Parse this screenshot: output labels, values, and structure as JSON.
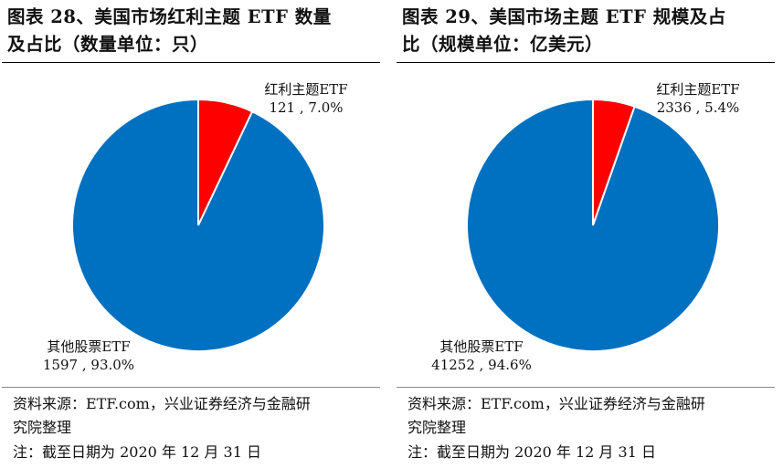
{
  "colors": {
    "highlight": "#fe0000",
    "other": "#0070c0"
  },
  "chart_data": [
    {
      "type": "pie",
      "title_line1": "图表 28、美国市场红利主题 ETF 数量",
      "title_line2": "及占比（数量单位：只）",
      "slices": [
        {
          "name": "红利主题ETF",
          "value": 121,
          "percent": "7.0%",
          "label_value": "121 , 7.0%",
          "color": "#fe0000"
        },
        {
          "name": "其他股票ETF",
          "value": 1597,
          "percent": "93.0%",
          "label_value": "1597 , 93.0%",
          "color": "#0070c0"
        }
      ],
      "source_line1": "资料来源：ETF.com，兴业证券经济与金融研",
      "source_line2": "究院整理",
      "note": "注：截至日期为 2020 年 12 月 31 日"
    },
    {
      "type": "pie",
      "title_line1": "图表 29、美国市场主题 ETF 规模及占",
      "title_line2": "比（规模单位：亿美元）",
      "slices": [
        {
          "name": "红利主题ETF",
          "value": 2336,
          "percent": "5.4%",
          "label_value": "2336 , 5.4%",
          "color": "#fe0000"
        },
        {
          "name": "其他股票ETF",
          "value": 41252,
          "percent": "94.6%",
          "label_value": "41252 , 94.6%",
          "color": "#0070c0"
        }
      ],
      "source_line1": "资料来源：ETF.com，兴业证券经济与金融研",
      "source_line2": "究院整理",
      "note": "注：截至日期为 2020 年 12 月 31 日"
    }
  ]
}
